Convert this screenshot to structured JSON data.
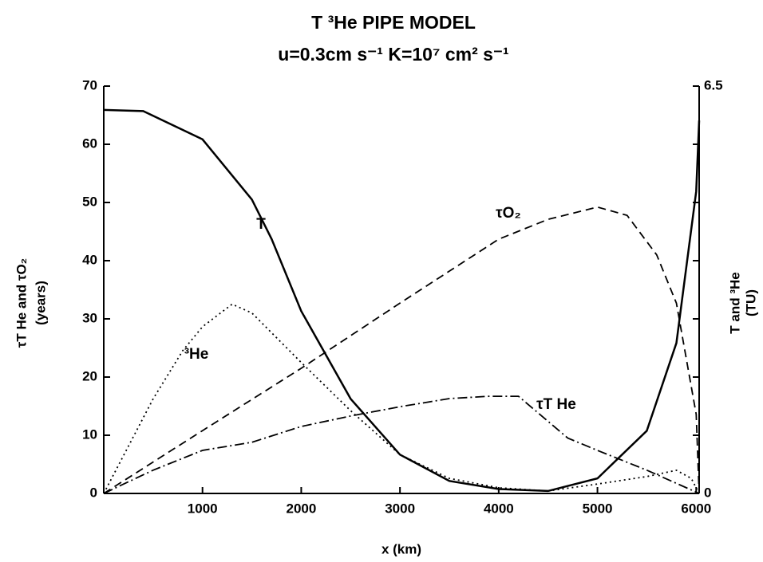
{
  "chart_data": {
    "type": "line",
    "title": "T ³He PIPE MODEL",
    "subtitle": "u=0.3cm s⁻¹    K=10⁷ cm² s⁻¹",
    "xlabel": "x  (km)",
    "ylabel": [
      "τT He and τO₂",
      "(years)"
    ],
    "y2label": [
      "T and ³He",
      "(TU)"
    ],
    "xlim": [
      0,
      6030
    ],
    "xticks": [
      1000,
      2000,
      3000,
      4000,
      5000,
      6000
    ],
    "ylim": [
      0,
      70
    ],
    "yticks": [
      0,
      10,
      20,
      30,
      40,
      50,
      60,
      70
    ],
    "y2lim": [
      0,
      6.5
    ],
    "y2ticks": [
      0,
      6.5
    ],
    "series": [
      {
        "name": "T",
        "color": "#000000",
        "style": "solid",
        "axis": "y2",
        "x": [
          0,
          400,
          1000,
          1500,
          1700,
          2000,
          2500,
          3000,
          3500,
          4000,
          4500,
          5000,
          5500,
          5800,
          6000,
          6030
        ],
        "values": [
          6.12,
          6.1,
          5.65,
          4.69,
          4.06,
          2.91,
          1.51,
          0.62,
          0.2,
          0.07,
          0.04,
          0.24,
          1.0,
          2.4,
          4.82,
          5.95
        ]
      },
      {
        "name": "³He",
        "color": "#000000",
        "style": "dotted",
        "axis": "y2",
        "x": [
          0,
          500,
          800,
          1000,
          1300,
          1500,
          2000,
          2500,
          3000,
          3500,
          4000,
          4500,
          5000,
          5500,
          5800,
          5950,
          6030
        ],
        "values": [
          0,
          1.51,
          2.28,
          2.66,
          3.02,
          2.88,
          2.09,
          1.32,
          0.62,
          0.24,
          0.09,
          0.04,
          0.15,
          0.27,
          0.37,
          0.24,
          0
        ]
      },
      {
        "name": "τO₂",
        "color": "#000000",
        "style": "dashed",
        "x": [
          0,
          1000,
          2000,
          3000,
          4000,
          4500,
          5000,
          5300,
          5600,
          5800,
          6000,
          6030
        ],
        "values": [
          0,
          10.8,
          21.5,
          32.7,
          43.7,
          47.1,
          49.2,
          47.8,
          41,
          32.7,
          13.6,
          0
        ]
      },
      {
        "name": "τT He",
        "color": "#000000",
        "style": "dashdot",
        "x": [
          0,
          500,
          1000,
          1500,
          2000,
          2500,
          3000,
          3500,
          3900,
          4200,
          4700,
          5000,
          5500,
          6030
        ],
        "values": [
          0,
          4,
          7.4,
          8.8,
          11.5,
          13.3,
          14.9,
          16.3,
          16.7,
          16.7,
          9.5,
          7.4,
          4,
          0
        ]
      }
    ]
  }
}
